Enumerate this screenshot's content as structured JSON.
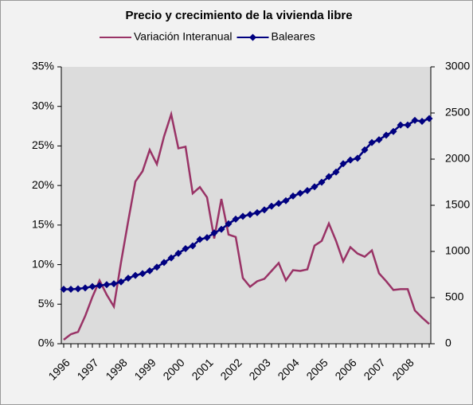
{
  "chart_data": {
    "type": "line",
    "title": "Precio y crecimiento de la vivienda libre",
    "categories": [
      "1996",
      null,
      null,
      null,
      "1997",
      null,
      null,
      null,
      "1998",
      null,
      null,
      null,
      "1999",
      null,
      null,
      null,
      "2000",
      null,
      null,
      null,
      "2001",
      null,
      null,
      null,
      "2002",
      null,
      null,
      null,
      "2003",
      null,
      null,
      null,
      "2004",
      null,
      null,
      null,
      "2005",
      null,
      null,
      null,
      "2006",
      null,
      null,
      null,
      "2007",
      null,
      null,
      null,
      "2008",
      null,
      null,
      null
    ],
    "series": [
      {
        "name": "Variación Interanual",
        "color": "#993366",
        "values": [
          0.5,
          1.2,
          1.5,
          3.5,
          5.9,
          8.0,
          6.2,
          4.7,
          10.3,
          15.5,
          20.5,
          21.8,
          24.5,
          22.7,
          26.2,
          29.0,
          24.7,
          24.9,
          19.0,
          19.8,
          18.5,
          13.3,
          18.3,
          13.8,
          13.5,
          8.3,
          7.2,
          7.9,
          8.2,
          9.2,
          10.2,
          8.0,
          9.3,
          9.2,
          9.4,
          12.4,
          13.0,
          15.2,
          13.0,
          10.4,
          12.2,
          11.4,
          11.0,
          11.8,
          8.9,
          7.9,
          6.8,
          6.9,
          6.9,
          4.2,
          3.3,
          2.5
        ]
      },
      {
        "name": "Baleares",
        "color": "#000080",
        "axis": "y2",
        "marker": "diamond",
        "values": [
          590,
          590,
          595,
          605,
          620,
          630,
          640,
          650,
          670,
          710,
          740,
          760,
          790,
          830,
          880,
          930,
          980,
          1030,
          1060,
          1130,
          1150,
          1200,
          1240,
          1300,
          1350,
          1380,
          1400,
          1420,
          1450,
          1490,
          1520,
          1550,
          1600,
          1630,
          1660,
          1700,
          1750,
          1810,
          1860,
          1950,
          1990,
          2010,
          2100,
          2180,
          2210,
          2260,
          2300,
          2370,
          2370,
          2420,
          2410,
          2440
        ]
      }
    ],
    "ylim": [
      0,
      35
    ],
    "yticks": [
      {
        "value": 0,
        "label": "0%"
      },
      {
        "value": 5,
        "label": "5%"
      },
      {
        "value": 10,
        "label": "10%"
      },
      {
        "value": 15,
        "label": "15%"
      },
      {
        "value": 20,
        "label": "20%"
      },
      {
        "value": 25,
        "label": "25%"
      },
      {
        "value": 30,
        "label": "30%"
      },
      {
        "value": 35,
        "label": "35%"
      }
    ],
    "y2lim": [
      0,
      3000
    ],
    "y2ticks": [
      0,
      500,
      1000,
      1500,
      2000,
      2500,
      3000
    ],
    "legend": "top"
  }
}
